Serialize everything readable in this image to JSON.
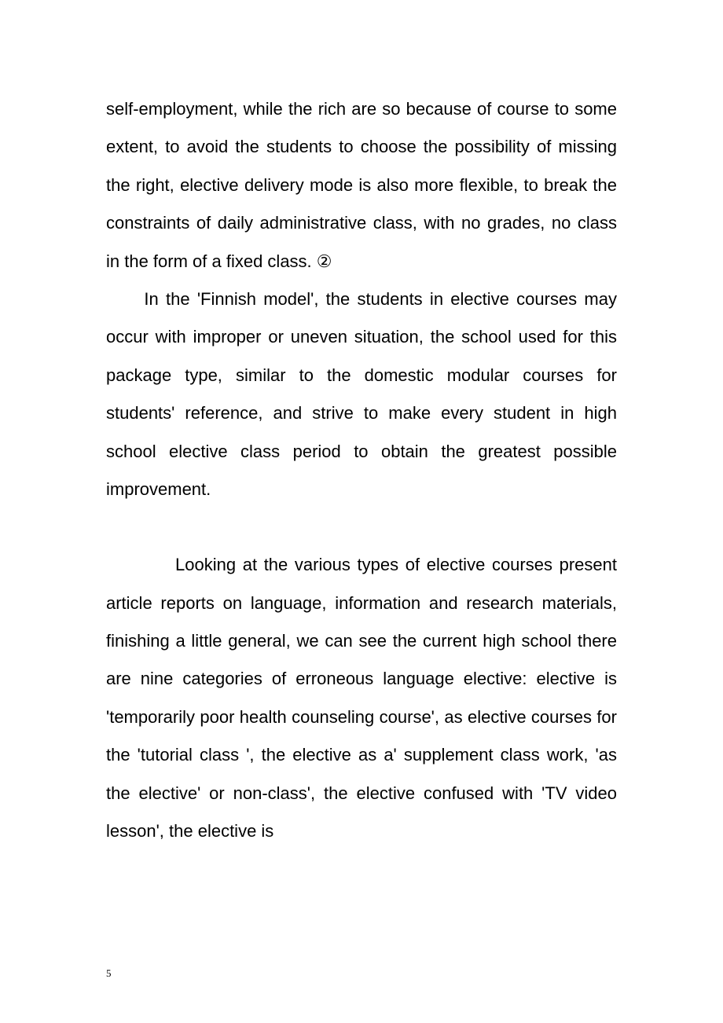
{
  "document": {
    "paragraphs": [
      {
        "text": "self-employment, while the rich are so because of course to some extent, to avoid the students to choose the possibility of missing the right, elective delivery mode is also more flexible, to break the constraints of daily administrative class, with no grades, no class in the form of a fixed class.   ②",
        "indent": false
      },
      {
        "text": "In the 'Finnish model', the students in elective courses may occur with improper or uneven situation, the school used for this package type, similar to the domestic modular courses for students'  reference, and strive to make every student in high school elective class period to obtain the greatest possible improvement.",
        "indent": true
      },
      {
        "text": "Looking at the various types of elective courses present article reports on language, information and research materials, finishing a little general, we can see the current high school there are nine categories of erroneous language elective: elective is 'temporarily poor health counseling course', as elective courses for the 'tutorial class ', the elective as a' supplement class work, 'as the elective' or non-class', the elective confused with 'TV video lesson', the elective is",
        "indent": false,
        "largeIndent": true
      }
    ],
    "pageNumber": "5",
    "styling": {
      "pageWidth": 920,
      "pageHeight": 1302,
      "backgroundColor": "#ffffff",
      "textColor": "#000000",
      "fontSize": 22,
      "lineHeight": 2.2,
      "paddingTop": 115,
      "paddingLeft": 135,
      "paddingRight": 135,
      "paddingBottom": 80,
      "fontFamily": "Microsoft YaHei",
      "pageNumberFontSize": 13
    }
  }
}
